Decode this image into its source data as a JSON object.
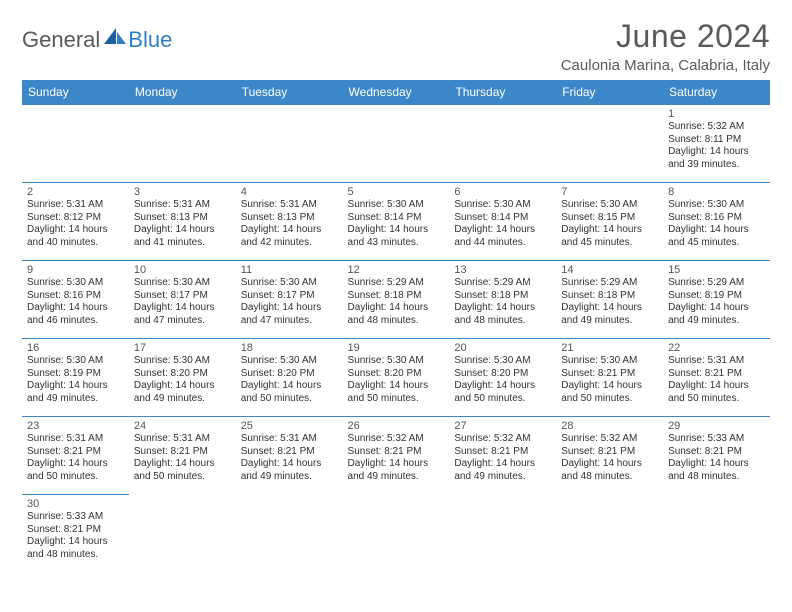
{
  "logo": {
    "text1": "General",
    "text2": "Blue"
  },
  "title": "June 2024",
  "location": "Caulonia Marina, Calabria, Italy",
  "colors": {
    "header_bg": "#3b87c8",
    "header_text": "#ffffff",
    "row_border": "#3b87c8",
    "body_text": "#333333",
    "title_text": "#5a5a5a",
    "logo_accent": "#2f7fc2"
  },
  "day_headers": [
    "Sunday",
    "Monday",
    "Tuesday",
    "Wednesday",
    "Thursday",
    "Friday",
    "Saturday"
  ],
  "weeks": [
    [
      null,
      null,
      null,
      null,
      null,
      null,
      {
        "n": "1",
        "sr": "Sunrise: 5:32 AM",
        "ss": "Sunset: 8:11 PM",
        "d1": "Daylight: 14 hours",
        "d2": "and 39 minutes."
      }
    ],
    [
      {
        "n": "2",
        "sr": "Sunrise: 5:31 AM",
        "ss": "Sunset: 8:12 PM",
        "d1": "Daylight: 14 hours",
        "d2": "and 40 minutes."
      },
      {
        "n": "3",
        "sr": "Sunrise: 5:31 AM",
        "ss": "Sunset: 8:13 PM",
        "d1": "Daylight: 14 hours",
        "d2": "and 41 minutes."
      },
      {
        "n": "4",
        "sr": "Sunrise: 5:31 AM",
        "ss": "Sunset: 8:13 PM",
        "d1": "Daylight: 14 hours",
        "d2": "and 42 minutes."
      },
      {
        "n": "5",
        "sr": "Sunrise: 5:30 AM",
        "ss": "Sunset: 8:14 PM",
        "d1": "Daylight: 14 hours",
        "d2": "and 43 minutes."
      },
      {
        "n": "6",
        "sr": "Sunrise: 5:30 AM",
        "ss": "Sunset: 8:14 PM",
        "d1": "Daylight: 14 hours",
        "d2": "and 44 minutes."
      },
      {
        "n": "7",
        "sr": "Sunrise: 5:30 AM",
        "ss": "Sunset: 8:15 PM",
        "d1": "Daylight: 14 hours",
        "d2": "and 45 minutes."
      },
      {
        "n": "8",
        "sr": "Sunrise: 5:30 AM",
        "ss": "Sunset: 8:16 PM",
        "d1": "Daylight: 14 hours",
        "d2": "and 45 minutes."
      }
    ],
    [
      {
        "n": "9",
        "sr": "Sunrise: 5:30 AM",
        "ss": "Sunset: 8:16 PM",
        "d1": "Daylight: 14 hours",
        "d2": "and 46 minutes."
      },
      {
        "n": "10",
        "sr": "Sunrise: 5:30 AM",
        "ss": "Sunset: 8:17 PM",
        "d1": "Daylight: 14 hours",
        "d2": "and 47 minutes."
      },
      {
        "n": "11",
        "sr": "Sunrise: 5:30 AM",
        "ss": "Sunset: 8:17 PM",
        "d1": "Daylight: 14 hours",
        "d2": "and 47 minutes."
      },
      {
        "n": "12",
        "sr": "Sunrise: 5:29 AM",
        "ss": "Sunset: 8:18 PM",
        "d1": "Daylight: 14 hours",
        "d2": "and 48 minutes."
      },
      {
        "n": "13",
        "sr": "Sunrise: 5:29 AM",
        "ss": "Sunset: 8:18 PM",
        "d1": "Daylight: 14 hours",
        "d2": "and 48 minutes."
      },
      {
        "n": "14",
        "sr": "Sunrise: 5:29 AM",
        "ss": "Sunset: 8:18 PM",
        "d1": "Daylight: 14 hours",
        "d2": "and 49 minutes."
      },
      {
        "n": "15",
        "sr": "Sunrise: 5:29 AM",
        "ss": "Sunset: 8:19 PM",
        "d1": "Daylight: 14 hours",
        "d2": "and 49 minutes."
      }
    ],
    [
      {
        "n": "16",
        "sr": "Sunrise: 5:30 AM",
        "ss": "Sunset: 8:19 PM",
        "d1": "Daylight: 14 hours",
        "d2": "and 49 minutes."
      },
      {
        "n": "17",
        "sr": "Sunrise: 5:30 AM",
        "ss": "Sunset: 8:20 PM",
        "d1": "Daylight: 14 hours",
        "d2": "and 49 minutes."
      },
      {
        "n": "18",
        "sr": "Sunrise: 5:30 AM",
        "ss": "Sunset: 8:20 PM",
        "d1": "Daylight: 14 hours",
        "d2": "and 50 minutes."
      },
      {
        "n": "19",
        "sr": "Sunrise: 5:30 AM",
        "ss": "Sunset: 8:20 PM",
        "d1": "Daylight: 14 hours",
        "d2": "and 50 minutes."
      },
      {
        "n": "20",
        "sr": "Sunrise: 5:30 AM",
        "ss": "Sunset: 8:20 PM",
        "d1": "Daylight: 14 hours",
        "d2": "and 50 minutes."
      },
      {
        "n": "21",
        "sr": "Sunrise: 5:30 AM",
        "ss": "Sunset: 8:21 PM",
        "d1": "Daylight: 14 hours",
        "d2": "and 50 minutes."
      },
      {
        "n": "22",
        "sr": "Sunrise: 5:31 AM",
        "ss": "Sunset: 8:21 PM",
        "d1": "Daylight: 14 hours",
        "d2": "and 50 minutes."
      }
    ],
    [
      {
        "n": "23",
        "sr": "Sunrise: 5:31 AM",
        "ss": "Sunset: 8:21 PM",
        "d1": "Daylight: 14 hours",
        "d2": "and 50 minutes."
      },
      {
        "n": "24",
        "sr": "Sunrise: 5:31 AM",
        "ss": "Sunset: 8:21 PM",
        "d1": "Daylight: 14 hours",
        "d2": "and 50 minutes."
      },
      {
        "n": "25",
        "sr": "Sunrise: 5:31 AM",
        "ss": "Sunset: 8:21 PM",
        "d1": "Daylight: 14 hours",
        "d2": "and 49 minutes."
      },
      {
        "n": "26",
        "sr": "Sunrise: 5:32 AM",
        "ss": "Sunset: 8:21 PM",
        "d1": "Daylight: 14 hours",
        "d2": "and 49 minutes."
      },
      {
        "n": "27",
        "sr": "Sunrise: 5:32 AM",
        "ss": "Sunset: 8:21 PM",
        "d1": "Daylight: 14 hours",
        "d2": "and 49 minutes."
      },
      {
        "n": "28",
        "sr": "Sunrise: 5:32 AM",
        "ss": "Sunset: 8:21 PM",
        "d1": "Daylight: 14 hours",
        "d2": "and 48 minutes."
      },
      {
        "n": "29",
        "sr": "Sunrise: 5:33 AM",
        "ss": "Sunset: 8:21 PM",
        "d1": "Daylight: 14 hours",
        "d2": "and 48 minutes."
      }
    ],
    [
      {
        "n": "30",
        "sr": "Sunrise: 5:33 AM",
        "ss": "Sunset: 8:21 PM",
        "d1": "Daylight: 14 hours",
        "d2": "and 48 minutes."
      },
      null,
      null,
      null,
      null,
      null,
      null
    ]
  ]
}
